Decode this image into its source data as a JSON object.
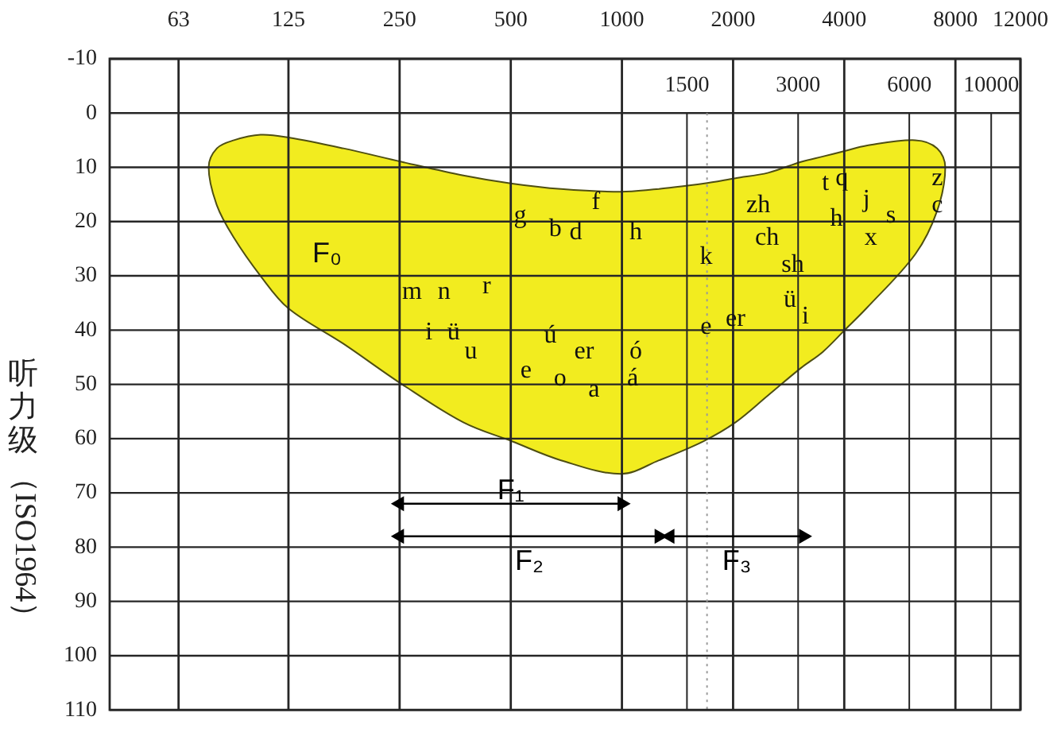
{
  "chart_data": {
    "type": "area",
    "ylabel": "听力级（ISO1964）",
    "log": "x",
    "xlim": [
      41,
      12000
    ],
    "xticks": [
      63,
      125,
      250,
      500,
      1000,
      2000,
      4000,
      8000,
      12000
    ],
    "ylim": [
      110,
      -10
    ],
    "yticks": [
      -10,
      0,
      10,
      20,
      30,
      40,
      50,
      60,
      70,
      80,
      90,
      100,
      110
    ],
    "grid": true,
    "series": [
      {
        "color": "#f2ec1f",
        "x": [
          76,
          80,
          89,
          105,
          125,
          176,
          254,
          372,
          504,
          684,
          995,
          1260,
          1660,
          2030,
          2490,
          3050,
          3500,
          4010,
          4590,
          6230,
          7140,
          7510
        ],
        "values": [
          null,
          null,
          null,
          null,
          null,
          null,
          null,
          null,
          null,
          null,
          null,
          null,
          null,
          null,
          null,
          null,
          null,
          null,
          null,
          null,
          null,
          null
        ],
        "lower": [
          10,
          6.5,
          5,
          4,
          4.5,
          6.5,
          9,
          11.5,
          13,
          14,
          14.5,
          14,
          13,
          12,
          11,
          9,
          8,
          7,
          6,
          5,
          6.5,
          10
        ],
        "upper": [
          10,
          17,
          23,
          30,
          36,
          42.5,
          50,
          57,
          60.5,
          64,
          66.5,
          64,
          60.5,
          57,
          52,
          47,
          44,
          40,
          36,
          26,
          18,
          10
        ]
      },
      {
        "type": "line",
        "name": "F₁",
        "color": "#000000",
        "marker": "triangle",
        "x": [
          250,
          1000
        ],
        "values": [
          72,
          72
        ]
      },
      {
        "type": "line",
        "name": "F₂",
        "color": "#000000",
        "marker": "triangle",
        "x": [
          250,
          1260
        ],
        "values": [
          78,
          78
        ]
      },
      {
        "type": "line",
        "name": "F₃",
        "color": "#000000",
        "marker": "triangle",
        "x": [
          1350,
          3100
        ],
        "values": [
          78,
          78
        ]
      }
    ],
    "ref_lines": [
      {
        "axis": "x",
        "value": 1500,
        "label": "1500",
        "color": "#262626"
      },
      {
        "axis": "x",
        "value": 1700,
        "color": "#9a9a9a",
        "line_style": "dotted"
      },
      {
        "axis": "x",
        "value": 3000,
        "label": "3000",
        "color": "#262626"
      },
      {
        "axis": "x",
        "value": 6000,
        "label": "6000",
        "color": "#262626"
      },
      {
        "axis": "x",
        "value": 10000,
        "label": "10000",
        "color": "#262626"
      }
    ],
    "annotations": [
      "F₀",
      "m",
      "n",
      "r",
      "i",
      "ü",
      "u",
      "g",
      "b",
      "d",
      "f",
      "h",
      "ú",
      "er",
      "e",
      "o",
      "a",
      "ó",
      "á",
      "k",
      "zh",
      "ch",
      "sh",
      "ü",
      "i",
      "e",
      "er",
      "t",
      "q",
      "h",
      "j",
      "s",
      "x",
      "z",
      "c"
    ]
  }
}
